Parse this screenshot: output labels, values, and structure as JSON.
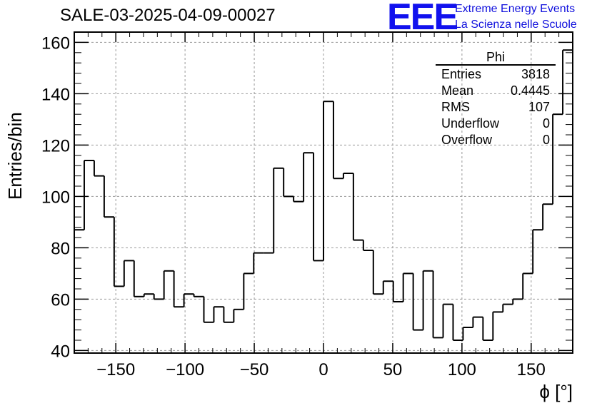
{
  "plot_title": "SALE-03-2025-04-09-00027",
  "logo": {
    "mark": "EEE",
    "line1": "Extreme Energy Events",
    "line2": "La Scienza nelle Scuole",
    "color": "#1111ee"
  },
  "stats": {
    "name": "Phi",
    "rows": [
      {
        "label": "Entries",
        "value": "3818"
      },
      {
        "label": "Mean",
        "value": "0.4445"
      },
      {
        "label": "RMS",
        "value": "107"
      },
      {
        "label": "Underflow",
        "value": "0"
      },
      {
        "label": "Overflow",
        "value": "0"
      }
    ]
  },
  "chart_data": {
    "type": "bar",
    "style": "step-histogram",
    "title": "SALE-03-2025-04-09-00027",
    "xlabel": "ϕ [°]",
    "ylabel": "Entries/bin",
    "xlim": [
      -180,
      180
    ],
    "ylim": [
      39,
      164
    ],
    "xticks": [
      -150,
      -100,
      -50,
      0,
      50,
      100,
      150
    ],
    "yticks": [
      40,
      60,
      80,
      100,
      120,
      140,
      160
    ],
    "grid": true,
    "bin_width": 7.2,
    "values": [
      87,
      114,
      108,
      92,
      65,
      75,
      61,
      62,
      60,
      71,
      57,
      62,
      61,
      51,
      57,
      51,
      56,
      70,
      78,
      78,
      111,
      100,
      98,
      117,
      75,
      137,
      107,
      109,
      83,
      79,
      62,
      67,
      59,
      70,
      48,
      71,
      45,
      58,
      44,
      49,
      53,
      44,
      55,
      58,
      60,
      70,
      87,
      97,
      132,
      157
    ],
    "line_color": "#000000",
    "grid_color": "#999999"
  }
}
